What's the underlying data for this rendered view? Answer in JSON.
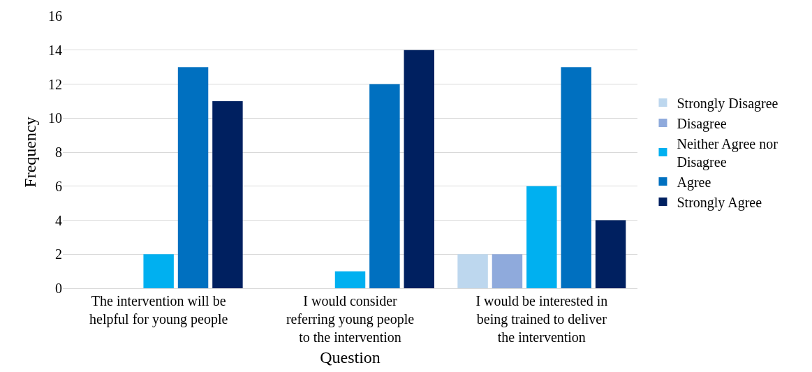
{
  "chart_data": {
    "type": "bar",
    "xlabel": "Question",
    "ylabel": "Frequency",
    "categories": [
      "The intervention will be helpful for young people",
      "I would consider referring young people to the intervention",
      "I would be interested in being trained to deliver the intervention"
    ],
    "series": [
      {
        "name": "Strongly Disagree",
        "color": "#bdd7ee",
        "values": [
          0,
          0,
          2
        ]
      },
      {
        "name": "Disagree",
        "color": "#8faadc",
        "values": [
          0,
          0,
          2
        ]
      },
      {
        "name": "Neither Agree nor Disagree",
        "color": "#00b0f0",
        "values": [
          2,
          1,
          6
        ]
      },
      {
        "name": "Agree",
        "color": "#0070c0",
        "values": [
          13,
          12,
          13
        ]
      },
      {
        "name": "Strongly Agree",
        "color": "#002060",
        "values": [
          11,
          14,
          4
        ]
      }
    ],
    "ylim": [
      0,
      16
    ],
    "yticks": [
      0,
      2,
      4,
      6,
      8,
      10,
      12,
      14,
      16
    ],
    "grid": "y",
    "legend": "right"
  }
}
